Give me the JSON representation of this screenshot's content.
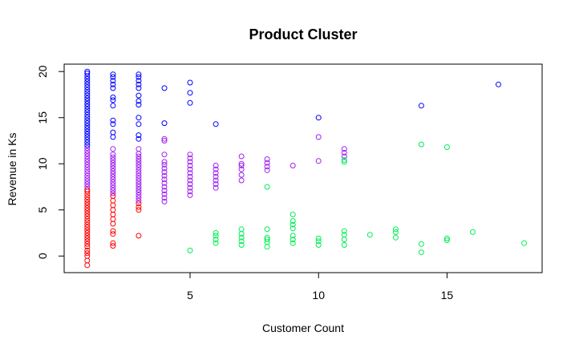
{
  "chart_data": {
    "type": "scatter",
    "title": "Product Cluster",
    "xlabel": "Customer Count",
    "ylabel": "Revenue in Ks",
    "xlim": [
      0.1,
      18.7
    ],
    "ylim": [
      -1.8,
      20.8
    ],
    "xticks": [
      5,
      10,
      15
    ],
    "yticks": [
      0,
      5,
      10,
      15,
      20
    ],
    "legend": "none",
    "grid": false,
    "colors": {
      "red": "#ff0000",
      "purple": "#a020f0",
      "blue": "#0000ff",
      "green": "#00ee55"
    },
    "series": [
      {
        "color": "red",
        "points": [
          [
            1,
            -1.0
          ],
          [
            1,
            -0.5
          ],
          [
            1,
            0.0
          ],
          [
            1,
            0.3
          ],
          [
            1,
            0.6
          ],
          [
            1,
            1.0
          ],
          [
            1,
            1.3
          ],
          [
            1,
            1.6
          ],
          [
            1,
            1.9
          ],
          [
            1,
            2.2
          ],
          [
            1,
            2.5
          ],
          [
            1,
            2.8
          ],
          [
            1,
            3.1
          ],
          [
            1,
            3.4
          ],
          [
            1,
            3.7
          ],
          [
            1,
            4.0
          ],
          [
            1,
            4.3
          ],
          [
            1,
            4.6
          ],
          [
            1,
            4.9
          ],
          [
            1,
            5.2
          ],
          [
            1,
            5.5
          ],
          [
            1,
            5.8
          ],
          [
            1,
            6.1
          ],
          [
            1,
            6.4
          ],
          [
            1,
            6.7
          ],
          [
            1,
            7.0
          ],
          [
            1,
            7.2
          ],
          [
            2,
            1.1
          ],
          [
            2,
            1.4
          ],
          [
            2,
            2.4
          ],
          [
            2,
            2.7
          ],
          [
            2,
            3.5
          ],
          [
            2,
            4.0
          ],
          [
            2,
            4.5
          ],
          [
            2,
            5.0
          ],
          [
            2,
            5.5
          ],
          [
            2,
            6.0
          ],
          [
            2,
            6.5
          ],
          [
            3,
            2.2
          ],
          [
            3,
            5.0
          ],
          [
            3,
            5.3
          ],
          [
            3,
            5.7
          ]
        ]
      },
      {
        "color": "purple",
        "points": [
          [
            1,
            7.5
          ],
          [
            1,
            7.8
          ],
          [
            1,
            8.1
          ],
          [
            1,
            8.4
          ],
          [
            1,
            8.7
          ],
          [
            1,
            9.0
          ],
          [
            1,
            9.3
          ],
          [
            1,
            9.6
          ],
          [
            1,
            9.9
          ],
          [
            1,
            10.2
          ],
          [
            1,
            10.5
          ],
          [
            1,
            10.8
          ],
          [
            1,
            11.1
          ],
          [
            1,
            11.4
          ],
          [
            1,
            11.7
          ],
          [
            2,
            6.8
          ],
          [
            2,
            7.1
          ],
          [
            2,
            7.4
          ],
          [
            2,
            7.7
          ],
          [
            2,
            8.0
          ],
          [
            2,
            8.3
          ],
          [
            2,
            8.6
          ],
          [
            2,
            8.9
          ],
          [
            2,
            9.2
          ],
          [
            2,
            9.5
          ],
          [
            2,
            9.8
          ],
          [
            2,
            10.1
          ],
          [
            2,
            10.4
          ],
          [
            2,
            10.7
          ],
          [
            2,
            11.0
          ],
          [
            2,
            11.6
          ],
          [
            3,
            6.0
          ],
          [
            3,
            6.3
          ],
          [
            3,
            6.6
          ],
          [
            3,
            6.9
          ],
          [
            3,
            7.2
          ],
          [
            3,
            7.5
          ],
          [
            3,
            7.8
          ],
          [
            3,
            8.1
          ],
          [
            3,
            8.4
          ],
          [
            3,
            8.7
          ],
          [
            3,
            9.0
          ],
          [
            3,
            9.3
          ],
          [
            3,
            9.6
          ],
          [
            3,
            9.9
          ],
          [
            3,
            10.2
          ],
          [
            3,
            10.5
          ],
          [
            3,
            10.8
          ],
          [
            3,
            11.1
          ],
          [
            3,
            11.6
          ],
          [
            4,
            5.9
          ],
          [
            4,
            6.3
          ],
          [
            4,
            6.7
          ],
          [
            4,
            7.1
          ],
          [
            4,
            7.5
          ],
          [
            4,
            7.9
          ],
          [
            4,
            8.3
          ],
          [
            4,
            8.7
          ],
          [
            4,
            9.1
          ],
          [
            4,
            9.5
          ],
          [
            4,
            9.9
          ],
          [
            4,
            10.2
          ],
          [
            4,
            11.0
          ],
          [
            4,
            12.5
          ],
          [
            4,
            12.7
          ],
          [
            5,
            6.6
          ],
          [
            5,
            7.0
          ],
          [
            5,
            7.4
          ],
          [
            5,
            7.8
          ],
          [
            5,
            8.2
          ],
          [
            5,
            8.6
          ],
          [
            5,
            9.0
          ],
          [
            5,
            9.4
          ],
          [
            5,
            9.8
          ],
          [
            5,
            10.2
          ],
          [
            5,
            10.6
          ],
          [
            5,
            11.0
          ],
          [
            6,
            7.4
          ],
          [
            6,
            7.8
          ],
          [
            6,
            8.2
          ],
          [
            6,
            8.6
          ],
          [
            6,
            9.0
          ],
          [
            6,
            9.4
          ],
          [
            6,
            9.8
          ],
          [
            7,
            8.2
          ],
          [
            7,
            8.8
          ],
          [
            7,
            9.4
          ],
          [
            7,
            9.8
          ],
          [
            7,
            10.0
          ],
          [
            7,
            10.8
          ],
          [
            8,
            9.3
          ],
          [
            8,
            9.7
          ],
          [
            8,
            10.1
          ],
          [
            8,
            10.5
          ],
          [
            9,
            9.8
          ],
          [
            10,
            10.3
          ],
          [
            10,
            12.9
          ],
          [
            11,
            10.8
          ],
          [
            11,
            11.2
          ],
          [
            11,
            11.6
          ]
        ]
      },
      {
        "color": "blue",
        "points": [
          [
            1,
            12.0
          ],
          [
            1,
            12.3
          ],
          [
            1,
            12.6
          ],
          [
            1,
            12.9
          ],
          [
            1,
            13.2
          ],
          [
            1,
            13.5
          ],
          [
            1,
            13.8
          ],
          [
            1,
            14.1
          ],
          [
            1,
            14.4
          ],
          [
            1,
            14.7
          ],
          [
            1,
            15.0
          ],
          [
            1,
            15.3
          ],
          [
            1,
            15.6
          ],
          [
            1,
            15.9
          ],
          [
            1,
            16.2
          ],
          [
            1,
            16.5
          ],
          [
            1,
            16.8
          ],
          [
            1,
            17.1
          ],
          [
            1,
            17.4
          ],
          [
            1,
            17.7
          ],
          [
            1,
            18.0
          ],
          [
            1,
            18.3
          ],
          [
            1,
            18.6
          ],
          [
            1,
            18.9
          ],
          [
            1,
            19.2
          ],
          [
            1,
            19.5
          ],
          [
            1,
            19.8
          ],
          [
            1,
            20.0
          ],
          [
            2,
            12.9
          ],
          [
            2,
            13.4
          ],
          [
            2,
            14.3
          ],
          [
            2,
            14.7
          ],
          [
            2,
            16.3
          ],
          [
            2,
            16.9
          ],
          [
            2,
            17.2
          ],
          [
            2,
            18.2
          ],
          [
            2,
            18.6
          ],
          [
            2,
            19.0
          ],
          [
            2,
            19.4
          ],
          [
            2,
            19.7
          ],
          [
            3,
            12.7
          ],
          [
            3,
            13.1
          ],
          [
            3,
            14.3
          ],
          [
            3,
            15.0
          ],
          [
            3,
            16.4
          ],
          [
            3,
            16.8
          ],
          [
            3,
            17.4
          ],
          [
            3,
            18.2
          ],
          [
            3,
            18.6
          ],
          [
            3,
            19.0
          ],
          [
            3,
            19.4
          ],
          [
            3,
            19.7
          ],
          [
            4,
            14.4
          ],
          [
            4,
            18.2
          ],
          [
            5,
            16.6
          ],
          [
            5,
            17.7
          ],
          [
            5,
            18.8
          ],
          [
            6,
            14.3
          ],
          [
            10,
            15.0
          ],
          [
            14,
            16.3
          ],
          [
            17,
            18.6
          ]
        ]
      },
      {
        "color": "green",
        "points": [
          [
            5,
            0.6
          ],
          [
            6,
            1.4
          ],
          [
            6,
            1.8
          ],
          [
            6,
            2.2
          ],
          [
            6,
            2.5
          ],
          [
            7,
            1.2
          ],
          [
            7,
            1.6
          ],
          [
            7,
            2.0
          ],
          [
            7,
            2.4
          ],
          [
            7,
            2.9
          ],
          [
            8,
            1.0
          ],
          [
            8,
            1.5
          ],
          [
            8,
            1.8
          ],
          [
            8,
            2.0
          ],
          [
            8,
            2.9
          ],
          [
            8,
            7.5
          ],
          [
            9,
            1.4
          ],
          [
            9,
            1.8
          ],
          [
            9,
            2.2
          ],
          [
            9,
            3.0
          ],
          [
            9,
            3.4
          ],
          [
            9,
            3.8
          ],
          [
            9,
            4.5
          ],
          [
            10,
            1.2
          ],
          [
            10,
            1.6
          ],
          [
            10,
            1.9
          ],
          [
            11,
            1.2
          ],
          [
            11,
            1.8
          ],
          [
            11,
            2.3
          ],
          [
            11,
            2.7
          ],
          [
            11,
            10.2
          ],
          [
            11,
            10.4
          ],
          [
            12,
            2.3
          ],
          [
            13,
            2.0
          ],
          [
            13,
            2.6
          ],
          [
            13,
            2.9
          ],
          [
            14,
            0.4
          ],
          [
            14,
            1.3
          ],
          [
            14,
            12.1
          ],
          [
            15,
            1.7
          ],
          [
            15,
            1.9
          ],
          [
            15,
            11.8
          ],
          [
            16,
            2.6
          ],
          [
            18,
            1.4
          ]
        ]
      }
    ]
  }
}
